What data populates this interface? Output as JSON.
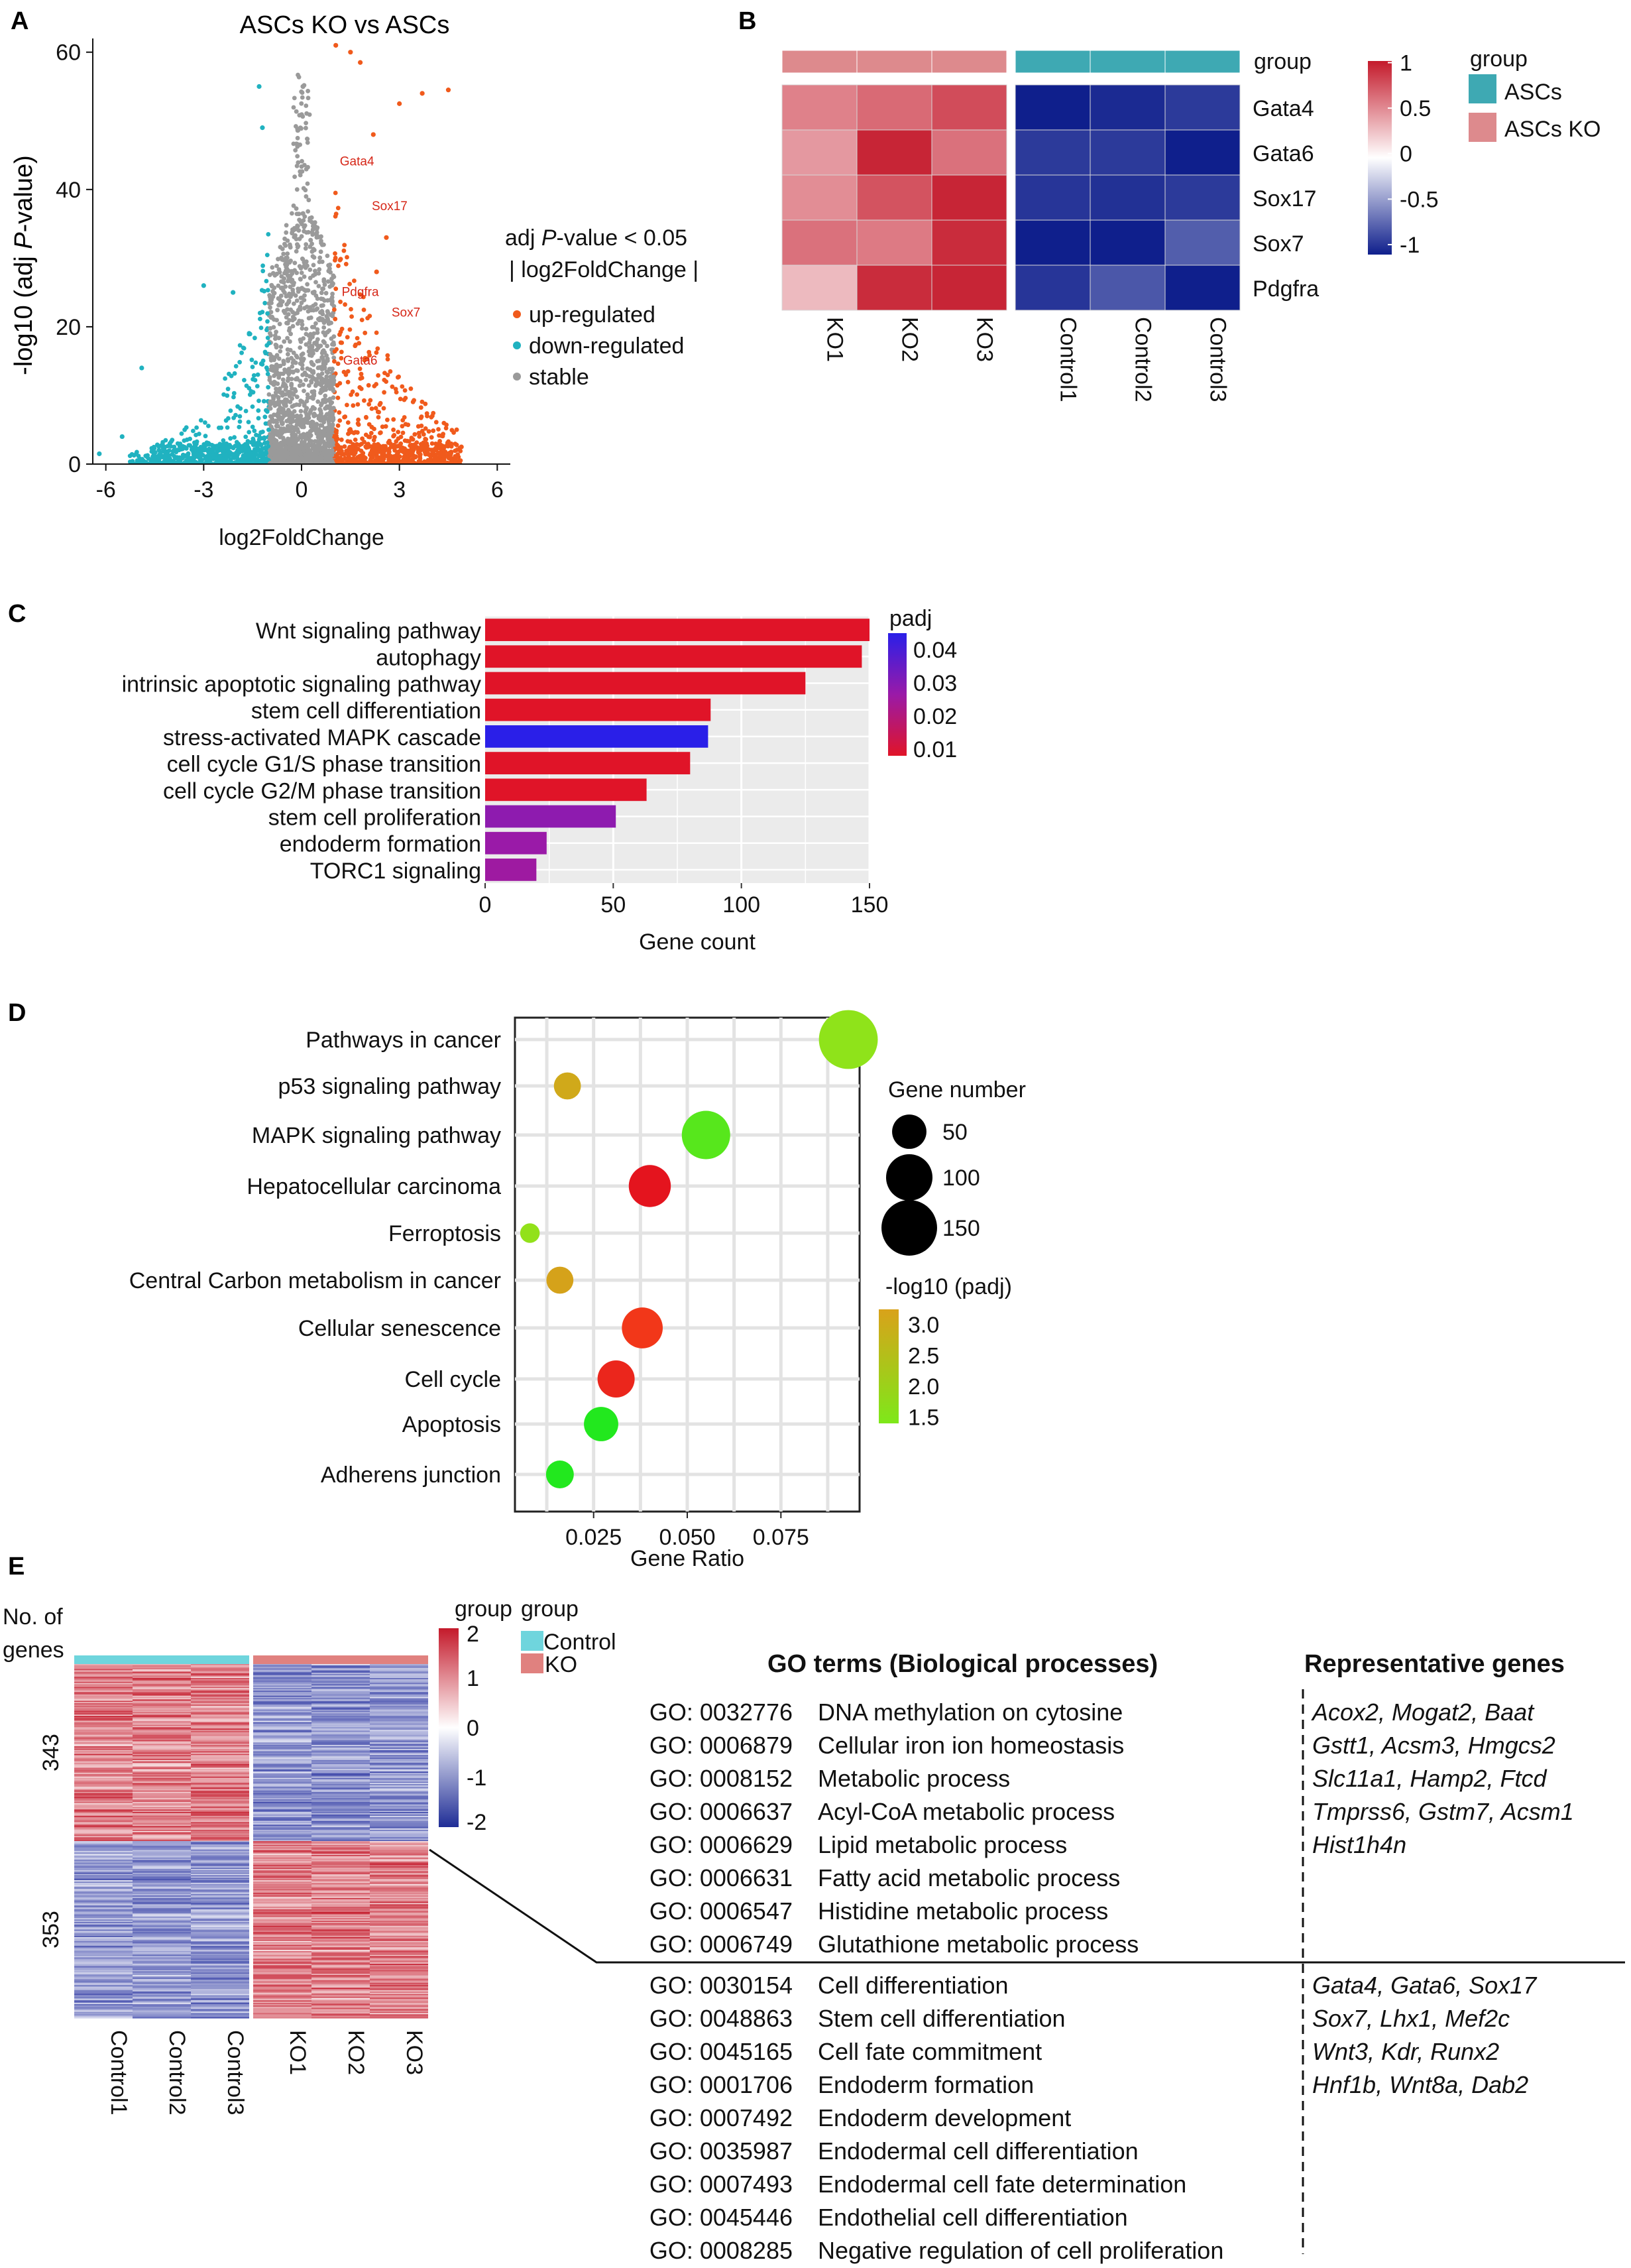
{
  "colors": {
    "up": "#f05a1c",
    "down": "#20b2c0",
    "stable": "#9a9a9a",
    "heat_high": "#c41a2b",
    "heat_mid": "#ffffff",
    "heat_low": "#0f1f8c",
    "asc": "#3ea9b3",
    "ko": "#dd8a8d",
    "control_e": "#6fd5dd",
    "ko_e": "#e0817f",
    "panel_bg": "#ebebeb"
  },
  "panels": {
    "a": "A",
    "b": "B",
    "c": "C",
    "d": "D",
    "e": "E"
  },
  "chart_data": [
    {
      "panel": "A",
      "type": "scatter",
      "title": "ASCs KO  vs  ASCs",
      "xlabel": "log2FoldChange",
      "ylabel_pre": "-log10 (adj ",
      "ylabel_it": "P",
      "ylabel_post": "-value)",
      "xlim": [
        -6.4,
        6.4
      ],
      "ylim": [
        0,
        62
      ],
      "xticks": [
        -6,
        -3,
        0,
        3,
        6
      ],
      "xtick_labels": [
        "-6",
        "-3",
        "0",
        "3",
        "6"
      ],
      "yticks": [
        0,
        20,
        40,
        60
      ],
      "ytick_labels": [
        "0",
        "20",
        "40",
        "60"
      ],
      "legend_title1_pre": "adj ",
      "legend_title1_it": "P",
      "legend_title1_post": "-value < 0.05",
      "legend_title2": "| log2FoldChange |",
      "legend": [
        "up-regulated",
        "down-regulated",
        "stable"
      ],
      "annotations": [
        {
          "label": "Gata4",
          "x": 1.7,
          "y": 43.5
        },
        {
          "label": "Sox17",
          "x": 2.7,
          "y": 37
        },
        {
          "label": "Pdgfra",
          "x": 1.8,
          "y": 24.5
        },
        {
          "label": "Sox7",
          "x": 3.2,
          "y": 21.5
        },
        {
          "label": "Gata6",
          "x": 1.8,
          "y": 14.5
        }
      ],
      "highlight_points": [
        {
          "x": 1.05,
          "y": 61,
          "class": "up"
        },
        {
          "x": 1.5,
          "y": 60,
          "class": "up"
        },
        {
          "x": 1.8,
          "y": 58.5,
          "class": "up"
        },
        {
          "x": 3.7,
          "y": 54,
          "class": "up"
        },
        {
          "x": 3.0,
          "y": 52.5,
          "class": "up"
        },
        {
          "x": 4.5,
          "y": 54.5,
          "class": "up"
        },
        {
          "x": 2.2,
          "y": 48,
          "class": "up"
        },
        {
          "x": -1.3,
          "y": 55,
          "class": "down"
        },
        {
          "x": -1.2,
          "y": 49,
          "class": "down"
        },
        {
          "x": -3.0,
          "y": 26,
          "class": "down"
        },
        {
          "x": -2.1,
          "y": 25,
          "class": "down"
        },
        {
          "x": -4.9,
          "y": 14,
          "class": "down"
        },
        {
          "x": -5.5,
          "y": 4,
          "class": "down"
        },
        {
          "x": -6.2,
          "y": 1.5,
          "class": "down"
        },
        {
          "x": 4.9,
          "y": 2.5,
          "class": "up"
        },
        {
          "x": 3.6,
          "y": 4.5,
          "class": "up"
        },
        {
          "x": 2.6,
          "y": 33,
          "class": "up"
        },
        {
          "x": 2.3,
          "y": 28,
          "class": "up"
        }
      ]
    },
    {
      "panel": "B",
      "type": "heatmap",
      "columns": [
        "KO1",
        "KO2",
        "KO3",
        "Control1",
        "Control2",
        "Control3"
      ],
      "column_groups": [
        "ASCs KO",
        "ASCs KO",
        "ASCs KO",
        "ASCs",
        "ASCs",
        "ASCs"
      ],
      "rows": [
        "Gata4",
        "Gata6",
        "Sox17",
        "Sox7",
        "Pdgfra"
      ],
      "values": [
        [
          0.55,
          0.65,
          0.78,
          -1.0,
          -0.95,
          -0.88
        ],
        [
          0.45,
          0.95,
          0.62,
          -0.88,
          -0.88,
          -1.0
        ],
        [
          0.5,
          0.75,
          0.95,
          -0.9,
          -0.92,
          -0.88
        ],
        [
          0.62,
          0.58,
          0.92,
          -1.0,
          -1.0,
          -0.72
        ],
        [
          0.3,
          0.92,
          0.95,
          -0.9,
          -0.75,
          -1.0
        ]
      ],
      "annotation_label": "group",
      "colorbar_ticks": [
        1,
        0.5,
        0,
        -0.5,
        -1
      ],
      "colorbar_tick_labels": [
        "1",
        "0.5",
        "0",
        "-0.5",
        "-1"
      ],
      "legend_title": "group",
      "legend": [
        {
          "label": "ASCs",
          "color": "#3ea9b3"
        },
        {
          "label": "ASCs KO",
          "color": "#dd8a8d"
        }
      ]
    },
    {
      "panel": "C",
      "type": "bar",
      "orientation": "horizontal",
      "categories": [
        "Wnt signaling pathway",
        "autophagy",
        "intrinsic apoptotic signaling pathway",
        "stem cell differentiation",
        "stress-activated MAPK cascade",
        "cell cycle G1/S phase transition",
        "cell cycle G2/M phase transition",
        "stem cell proliferation",
        "endoderm formation",
        "TORC1 signaling"
      ],
      "values": [
        150,
        147,
        125,
        88,
        87,
        80,
        63,
        51,
        24,
        20
      ],
      "padj": [
        0.008,
        0.008,
        0.008,
        0.008,
        0.044,
        0.008,
        0.008,
        0.028,
        0.026,
        0.025
      ],
      "xlabel": "Gene count",
      "xlim": [
        0,
        150
      ],
      "xticks": [
        0,
        50,
        100,
        150
      ],
      "xtick_labels": [
        "0",
        "50",
        "100",
        "150"
      ],
      "colorbar_title": "padj",
      "colorbar_ticks": [
        0.04,
        0.03,
        0.02,
        0.01
      ],
      "colorbar_tick_labels": [
        "0.04",
        "0.03",
        "0.02",
        "0.01"
      ]
    },
    {
      "panel": "D",
      "type": "scatter",
      "subtype": "bubble",
      "categories": [
        "Pathways in cancer",
        "p53 signaling pathway",
        "MAPK signaling pathway",
        "Hepatocellular carcinoma",
        "Ferroptosis",
        "Central Carbon metabolism in cancer",
        "Cellular senescence",
        "Cell cycle",
        "Apoptosis",
        "Adherens junction"
      ],
      "gene_ratio": [
        0.093,
        0.018,
        0.055,
        0.04,
        0.008,
        0.016,
        0.038,
        0.031,
        0.027,
        0.016
      ],
      "gene_number": [
        170,
        28,
        110,
        80,
        12,
        28,
        75,
        60,
        50,
        30
      ],
      "neg_log10_padj": [
        1.55,
        2.95,
        1.35,
        6.0,
        1.6,
        3.3,
        5.0,
        5.5,
        1.2,
        1.2
      ],
      "xlabel": "Gene Ratio",
      "xlim": [
        0.004,
        0.096
      ],
      "xticks": [
        0.025,
        0.05,
        0.075
      ],
      "xtick_labels": [
        "0.025",
        "0.050",
        "0.075"
      ],
      "size_legend_title": "Gene number",
      "size_legend": [
        50,
        100,
        150
      ],
      "size_legend_labels": [
        "50",
        "100",
        "150"
      ],
      "color_legend_title": "-log10 (padj)",
      "color_legend_ticks": [
        3.0,
        2.5,
        2.0,
        1.5
      ],
      "color_legend_tick_labels": [
        "3.0",
        "2.5",
        "2.0",
        "1.5"
      ]
    },
    {
      "panel": "E",
      "type": "heatmap",
      "columns": [
        "Control1",
        "Control2",
        "Control3",
        "KO1",
        "KO2",
        "KO3"
      ],
      "row_clusters": [
        {
          "label": "343",
          "genes": 343,
          "pattern": [
            1,
            1,
            1,
            -1,
            -1,
            -1
          ]
        },
        {
          "label": "353",
          "genes": 353,
          "pattern": [
            -1,
            -1,
            -1,
            1,
            1,
            1
          ]
        }
      ],
      "row_axis_title1": "No. of",
      "row_axis_title2": "genes",
      "colorbar_title": "group",
      "colorbar_ticks": [
        2,
        1,
        0,
        -1,
        -2
      ],
      "colorbar_tick_labels": [
        "2",
        "1",
        "0",
        "-1",
        "-2"
      ],
      "legend_title": "group",
      "legend": [
        {
          "label": "Control",
          "color": "#6fd5dd"
        },
        {
          "label": "KO",
          "color": "#e0817f"
        }
      ]
    }
  ],
  "go_table": {
    "header_terms": "GO terms (Biological processes)",
    "header_genes": "Representative genes",
    "top_terms": [
      {
        "id": "GO: 0032776",
        "name": "DNA methylation on cytosine"
      },
      {
        "id": "GO: 0006879",
        "name": "Cellular iron ion homeostasis"
      },
      {
        "id": "GO: 0008152",
        "name": "Metabolic process"
      },
      {
        "id": "GO: 0006637",
        "name": "Acyl-CoA metabolic process"
      },
      {
        "id": "GO: 0006629",
        "name": "Lipid metabolic process"
      },
      {
        "id": "GO: 0006631",
        "name": "Fatty acid metabolic process"
      },
      {
        "id": "GO: 0006547",
        "name": "Histidine metabolic process"
      },
      {
        "id": "GO: 0006749",
        "name": "Glutathione metabolic process"
      }
    ],
    "top_genes": [
      "Acox2, Mogat2, Baat",
      "Gstt1, Acsm3, Hmgcs2",
      "Slc11a1, Hamp2, Ftcd",
      "Tmprss6, Gstm7, Acsm1",
      "Hist1h4n"
    ],
    "bottom_terms": [
      {
        "id": "GO: 0030154",
        "name": "Cell differentiation"
      },
      {
        "id": "GO: 0048863",
        "name": "Stem cell differentiation"
      },
      {
        "id": "GO: 0045165",
        "name": "Cell fate commitment"
      },
      {
        "id": "GO: 0001706",
        "name": "Endoderm formation"
      },
      {
        "id": "GO: 0007492",
        "name": "Endoderm development"
      },
      {
        "id": "GO: 0035987",
        "name": "Endodermal cell differentiation"
      },
      {
        "id": "GO: 0007493",
        "name": "Endodermal cell fate determination"
      },
      {
        "id": "GO: 0045446",
        "name": "Endothelial cell differentiation"
      },
      {
        "id": "GO: 0008285",
        "name": "Negative regulation of cell proliferation"
      }
    ],
    "bottom_genes": [
      "Gata4, Gata6, Sox17",
      "Sox7, Lhx1, Mef2c",
      "Wnt3, Kdr, Runx2",
      "Hnf1b, Wnt8a, Dab2"
    ]
  }
}
